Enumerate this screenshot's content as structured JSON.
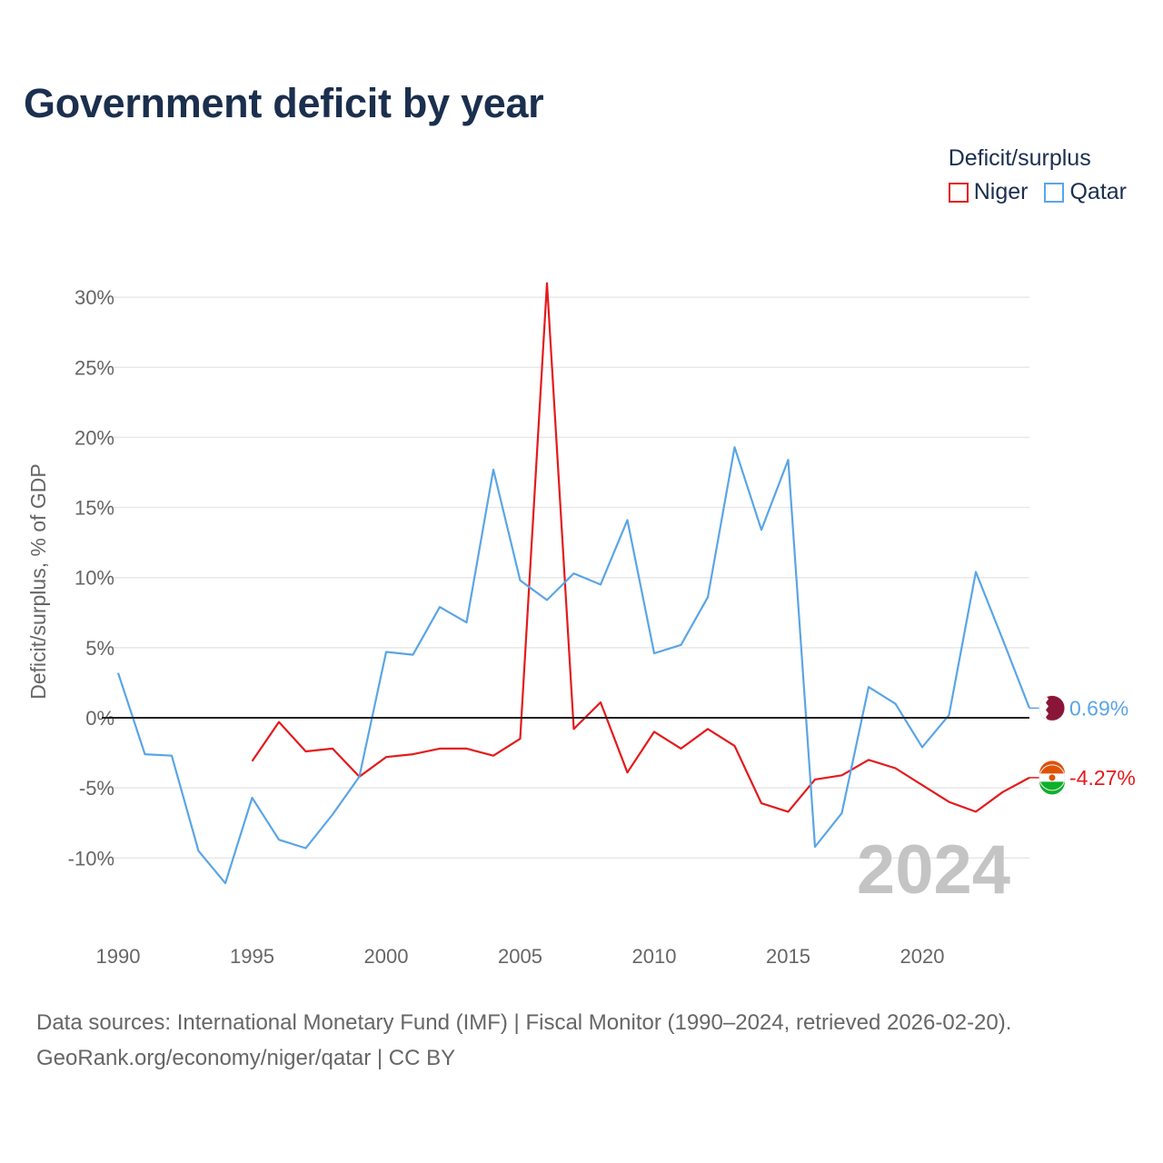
{
  "chart_data": {
    "type": "line",
    "title": "Government deficit by year",
    "ylabel": "Deficit/surplus, % of GDP",
    "xlabel": "",
    "ylim": [
      -15,
      31
    ],
    "xlim": [
      1990,
      2024
    ],
    "y_ticks": [
      30,
      25,
      20,
      15,
      10,
      5,
      0,
      -5,
      -10
    ],
    "y_tick_labels": [
      "30%",
      "25%",
      "20%",
      "15%",
      "10%",
      "5%",
      "0%",
      "-5%",
      "-10%"
    ],
    "x_ticks": [
      1990,
      1995,
      2000,
      2005,
      2010,
      2015,
      2020
    ],
    "x_tick_labels": [
      "1990",
      "1995",
      "2000",
      "2005",
      "2010",
      "2015",
      "2020"
    ],
    "legend_title": "Deficit/surplus",
    "legend_position": "top-right",
    "current_year_label": "2024",
    "series": [
      {
        "name": "Niger",
        "color": "#e41a1c",
        "end_label": "-4.27%",
        "flag_icon": "niger-flag-icon",
        "x": [
          1995,
          1996,
          1997,
          1998,
          1999,
          2000,
          2001,
          2002,
          2003,
          2004,
          2005,
          2006,
          2007,
          2008,
          2009,
          2010,
          2011,
          2012,
          2013,
          2014,
          2015,
          2016,
          2017,
          2018,
          2019,
          2020,
          2021,
          2022,
          2023,
          2024
        ],
        "values": [
          -3.1,
          -0.3,
          -2.4,
          -2.2,
          -4.2,
          -2.8,
          -2.6,
          -2.2,
          -2.2,
          -2.7,
          -1.5,
          31.0,
          -0.8,
          1.1,
          -3.9,
          -1.0,
          -2.2,
          -0.8,
          -2.0,
          -6.1,
          -6.7,
          -4.4,
          -4.1,
          -3.0,
          -3.6,
          -4.8,
          -6.0,
          -6.7,
          -5.3,
          -4.27
        ]
      },
      {
        "name": "Qatar",
        "color": "#5aa5e6",
        "end_label": "0.69%",
        "flag_icon": "qatar-flag-icon",
        "x": [
          1990,
          1991,
          1992,
          1993,
          1994,
          1995,
          1996,
          1997,
          1998,
          1999,
          2000,
          2001,
          2002,
          2003,
          2004,
          2005,
          2006,
          2007,
          2008,
          2009,
          2010,
          2011,
          2012,
          2013,
          2014,
          2015,
          2016,
          2017,
          2018,
          2019,
          2020,
          2021,
          2022,
          2023,
          2024
        ],
        "values": [
          3.2,
          -2.6,
          -2.7,
          -9.5,
          -11.8,
          -5.7,
          -8.7,
          -9.3,
          -6.9,
          -4.2,
          4.7,
          4.5,
          7.9,
          6.8,
          17.7,
          9.8,
          8.4,
          10.3,
          9.5,
          14.1,
          4.6,
          5.2,
          8.6,
          19.3,
          13.4,
          18.4,
          -9.2,
          -6.8,
          2.2,
          1.0,
          -2.1,
          0.2,
          10.4,
          5.6,
          0.69
        ]
      }
    ]
  },
  "source": {
    "line1": "Data sources: International Monetary Fund (IMF) | Fiscal Monitor (1990–2024, retrieved 2026-02-20).",
    "line2": "GeoRank.org/economy/niger/qatar | CC BY"
  }
}
